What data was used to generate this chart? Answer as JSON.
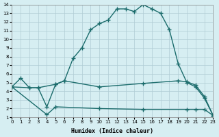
{
  "xlabel": "Humidex (Indice chaleur)",
  "bg_color": "#d6eef2",
  "grid_color": "#b0ccd4",
  "line_color": "#1a6b6b",
  "xlim": [
    0,
    23
  ],
  "ylim": [
    1,
    14
  ],
  "curve1_x": [
    0,
    1,
    2,
    3,
    4,
    5,
    6,
    7,
    8,
    9,
    10,
    11,
    12,
    13,
    14,
    15,
    16,
    17,
    18,
    19,
    20,
    21,
    22,
    23
  ],
  "curve1_y": [
    4.5,
    5.5,
    4.4,
    4.4,
    2.2,
    4.8,
    5.2,
    7.8,
    9.0,
    11.1,
    11.8,
    12.2,
    13.5,
    13.5,
    13.2,
    14.0,
    13.5,
    13.0,
    11.1,
    7.2,
    5.0,
    4.5,
    3.2,
    1.2
  ],
  "curve2_x": [
    0,
    2,
    3,
    5,
    6,
    10,
    15,
    19,
    20,
    21,
    22,
    23
  ],
  "curve2_y": [
    4.5,
    4.4,
    4.4,
    4.8,
    5.2,
    4.5,
    4.9,
    5.2,
    5.1,
    4.7,
    3.4,
    1.2
  ],
  "curve3_x": [
    0,
    4,
    5,
    10,
    15,
    20,
    21,
    22,
    23
  ],
  "curve3_y": [
    4.5,
    1.3,
    2.2,
    2.0,
    1.9,
    1.9,
    1.9,
    1.9,
    1.2
  ]
}
